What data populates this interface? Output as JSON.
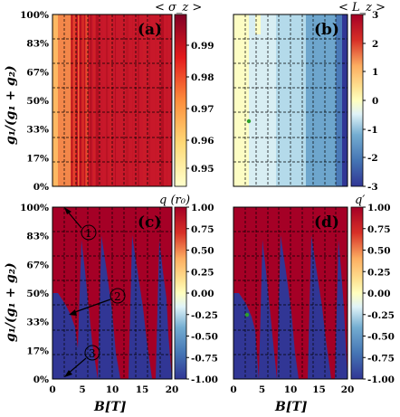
{
  "chart_data": [
    {
      "type": "heatmap",
      "panel_label": "(a)",
      "colorbar_title": "< σ_z >",
      "colormap": "YlOrRd",
      "xlim": [
        0,
        20
      ],
      "ylim": [
        0,
        100
      ],
      "x_ticks": [
        0,
        5,
        10,
        15,
        20
      ],
      "x_tick_labels": [
        "0",
        "5",
        "10",
        "15",
        "20"
      ],
      "y_tick_labels": [
        "0%",
        "17%",
        "33%",
        "50%",
        "67%",
        "83%",
        "100%"
      ],
      "colorbar_ticks": [
        "0.95",
        "0.96",
        "0.97",
        "0.98",
        "0.99"
      ],
      "colorbar_range": [
        0.945,
        0.997
      ],
      "description_values": {
        "low_B_value": 0.96,
        "high_B_value": 0.99
      }
    },
    {
      "type": "heatmap",
      "panel_label": "(b)",
      "colorbar_title": "< L_z >",
      "colormap": "RdYlBu",
      "xlim": [
        0,
        20
      ],
      "ylim": [
        0,
        100
      ],
      "colorbar_ticks": [
        "-3",
        "-2",
        "-1",
        "0",
        "1",
        "2",
        "3"
      ],
      "colorbar_range": [
        -3,
        3
      ],
      "bands": [
        {
          "x_from": 0,
          "x_to": 2.5,
          "value": 0
        },
        {
          "x_from": 2.5,
          "x_to": 7,
          "value": -1
        },
        {
          "x_from": 7,
          "x_to": 12,
          "value": -1.5
        },
        {
          "x_from": 12,
          "x_to": 17,
          "value": -2
        },
        {
          "x_from": 17,
          "x_to": 19,
          "value": -2.5
        },
        {
          "x_from": 19,
          "x_to": 20,
          "value": -3
        }
      ],
      "marker": {
        "x": 2.5,
        "y": 38
      }
    },
    {
      "type": "heatmap",
      "panel_label": "(c)",
      "colorbar_title": "q (r₀)",
      "colormap": "RdYlBu_r",
      "xlim": [
        0,
        20
      ],
      "ylim": [
        0,
        100
      ],
      "x_ticks": [
        0,
        5,
        10,
        15,
        20
      ],
      "x_tick_labels": [
        "0",
        "5",
        "10",
        "15",
        "20"
      ],
      "y_tick_labels": [
        "0%",
        "17%",
        "33%",
        "50%",
        "67%",
        "83%",
        "100%"
      ],
      "colorbar_ticks": [
        "1.00",
        "0.75",
        "0.50",
        "0.25",
        "0.00",
        "-0.25",
        "-0.50",
        "-0.75",
        "-1.00"
      ],
      "colorbar_range": [
        -1,
        1
      ],
      "annotations": [
        "①",
        "②",
        "③"
      ]
    },
    {
      "type": "heatmap",
      "panel_label": "(d)",
      "colorbar_title": "q′",
      "colormap": "RdYlBu_r",
      "xlim": [
        0,
        20
      ],
      "ylim": [
        0,
        100
      ],
      "x_ticks": [
        0,
        5,
        10,
        15,
        20
      ],
      "x_tick_labels": [
        "0",
        "5",
        "10",
        "15",
        "20"
      ],
      "colorbar_ticks": [
        "1.00",
        "0.75",
        "0.50",
        "0.25",
        "0.00",
        "-0.25",
        "-0.50",
        "-0.75",
        "-1.00"
      ],
      "colorbar_range": [
        -1,
        1
      ],
      "marker": {
        "x": 2.5,
        "y": 32
      }
    }
  ],
  "axes": {
    "ylabel": "g₁/(g₁ + g₂)",
    "xlabel": "B[T]"
  }
}
